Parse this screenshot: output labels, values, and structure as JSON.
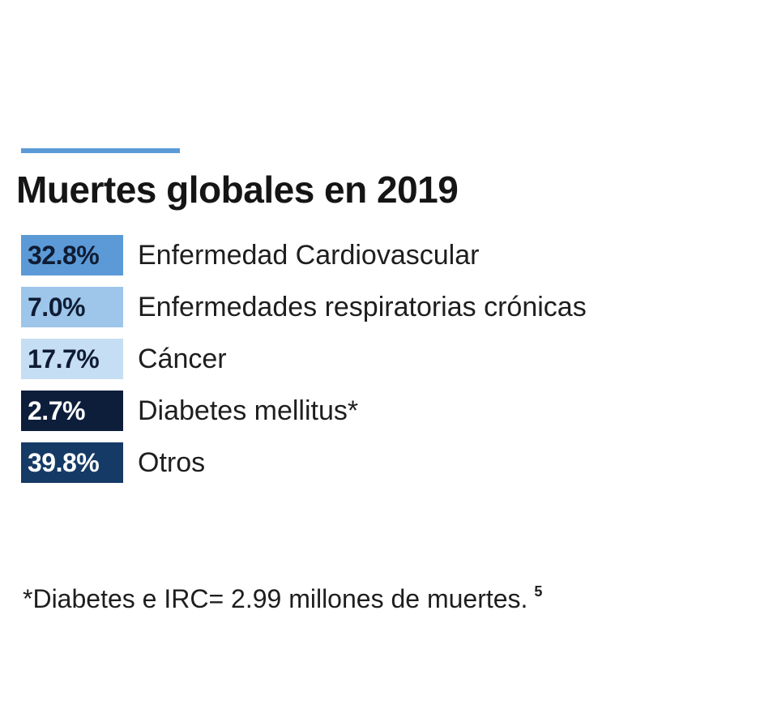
{
  "chart_data": {
    "type": "table",
    "title": "Muertes globales en 2019",
    "categories": [
      "Enfermedad Cardiovascular",
      "Enfermedades respiratorias crónicas",
      "Cáncer",
      "Diabetes mellitus*",
      "Otros"
    ],
    "values": [
      32.8,
      7.0,
      17.7,
      2.7,
      39.8
    ],
    "value_labels": [
      "32.8%",
      "7.0%",
      "17.7%",
      "2.7%",
      "39.8%"
    ],
    "unit": "%",
    "colors": [
      "#5b9ad6",
      "#9dc6ea",
      "#c6def3",
      "#0d1e3b",
      "#153a66"
    ],
    "text_colors": [
      "#0f1c33",
      "#0f1c33",
      "#0f1c33",
      "#ffffff",
      "#ffffff"
    ],
    "footnote": "*Diabetes e IRC= 2.99 millones de muertes.",
    "footnote_ref": "5"
  },
  "colors": {
    "accent": "#5b9ad6",
    "title_text": "#151515",
    "body_text": "#1e1e1e",
    "background": "#ffffff"
  }
}
